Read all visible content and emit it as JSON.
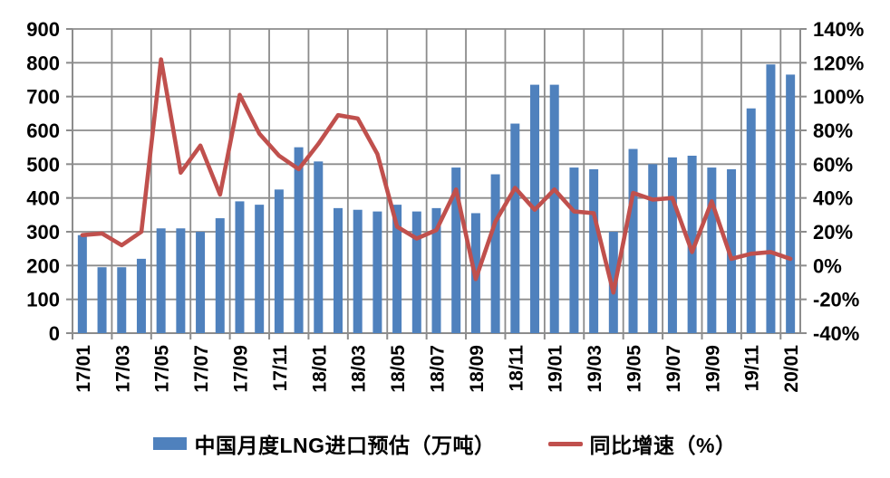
{
  "colors": {
    "bar": "#4F81BD",
    "line": "#C0504D",
    "grid": "#8C8C8C",
    "text": "#000000",
    "background": "#FFFFFF"
  },
  "legend": {
    "bar_label": "中国月度LNG进口预估（万吨）",
    "line_label": "同比增速（%）"
  },
  "chart_data": {
    "type": "bar+line",
    "grid": "both",
    "legend_position": "bottom",
    "categories": [
      "17/01",
      "17/02",
      "17/03",
      "17/04",
      "17/05",
      "17/06",
      "17/07",
      "17/08",
      "17/09",
      "17/10",
      "17/11",
      "17/12",
      "18/01",
      "18/02",
      "18/03",
      "18/04",
      "18/05",
      "18/06",
      "18/07",
      "18/08",
      "18/09",
      "18/10",
      "18/11",
      "18/12",
      "19/01",
      "19/02",
      "19/03",
      "19/04",
      "19/05",
      "19/06",
      "19/07",
      "19/08",
      "19/09",
      "19/10",
      "19/11",
      "19/12",
      "20/01"
    ],
    "x_tick_labels_shown": [
      "17/01",
      "17/03",
      "17/05",
      "17/07",
      "17/09",
      "17/11",
      "18/01",
      "18/03",
      "18/05",
      "18/07",
      "18/09",
      "18/11",
      "19/01",
      "19/03",
      "19/05",
      "19/07",
      "19/09",
      "19/11",
      "20/01"
    ],
    "series": [
      {
        "name": "中国月度LNG进口预估（万吨）",
        "type": "bar",
        "axis": "left",
        "values": [
          290,
          195,
          195,
          220,
          310,
          310,
          300,
          340,
          390,
          380,
          425,
          550,
          508,
          370,
          365,
          360,
          380,
          360,
          370,
          490,
          355,
          470,
          620,
          735,
          735,
          490,
          485,
          300,
          545,
          500,
          520,
          525,
          490,
          485,
          665,
          795,
          765
        ]
      },
      {
        "name": "同比增速（%）",
        "type": "line",
        "axis": "right",
        "values": [
          18,
          19,
          12,
          20,
          122,
          55,
          71,
          42,
          101,
          78,
          65,
          57,
          72,
          89,
          87,
          66,
          23,
          16,
          21,
          45,
          -8,
          26,
          46,
          33,
          45,
          32,
          31,
          -16,
          43,
          39,
          40,
          8,
          38,
          4,
          7,
          8,
          4
        ]
      }
    ],
    "left_axis": {
      "min": 0,
      "max": 900,
      "step": 100,
      "labels": [
        "900",
        "800",
        "700",
        "600",
        "500",
        "400",
        "300",
        "200",
        "100",
        "0"
      ]
    },
    "right_axis": {
      "min": -40,
      "max": 140,
      "step": 20,
      "labels": [
        "140%",
        "120%",
        "100%",
        "80%",
        "60%",
        "40%",
        "20%",
        "0%",
        "-20%",
        "-40%"
      ]
    },
    "xlabel": "",
    "ylabel": "",
    "title": ""
  }
}
